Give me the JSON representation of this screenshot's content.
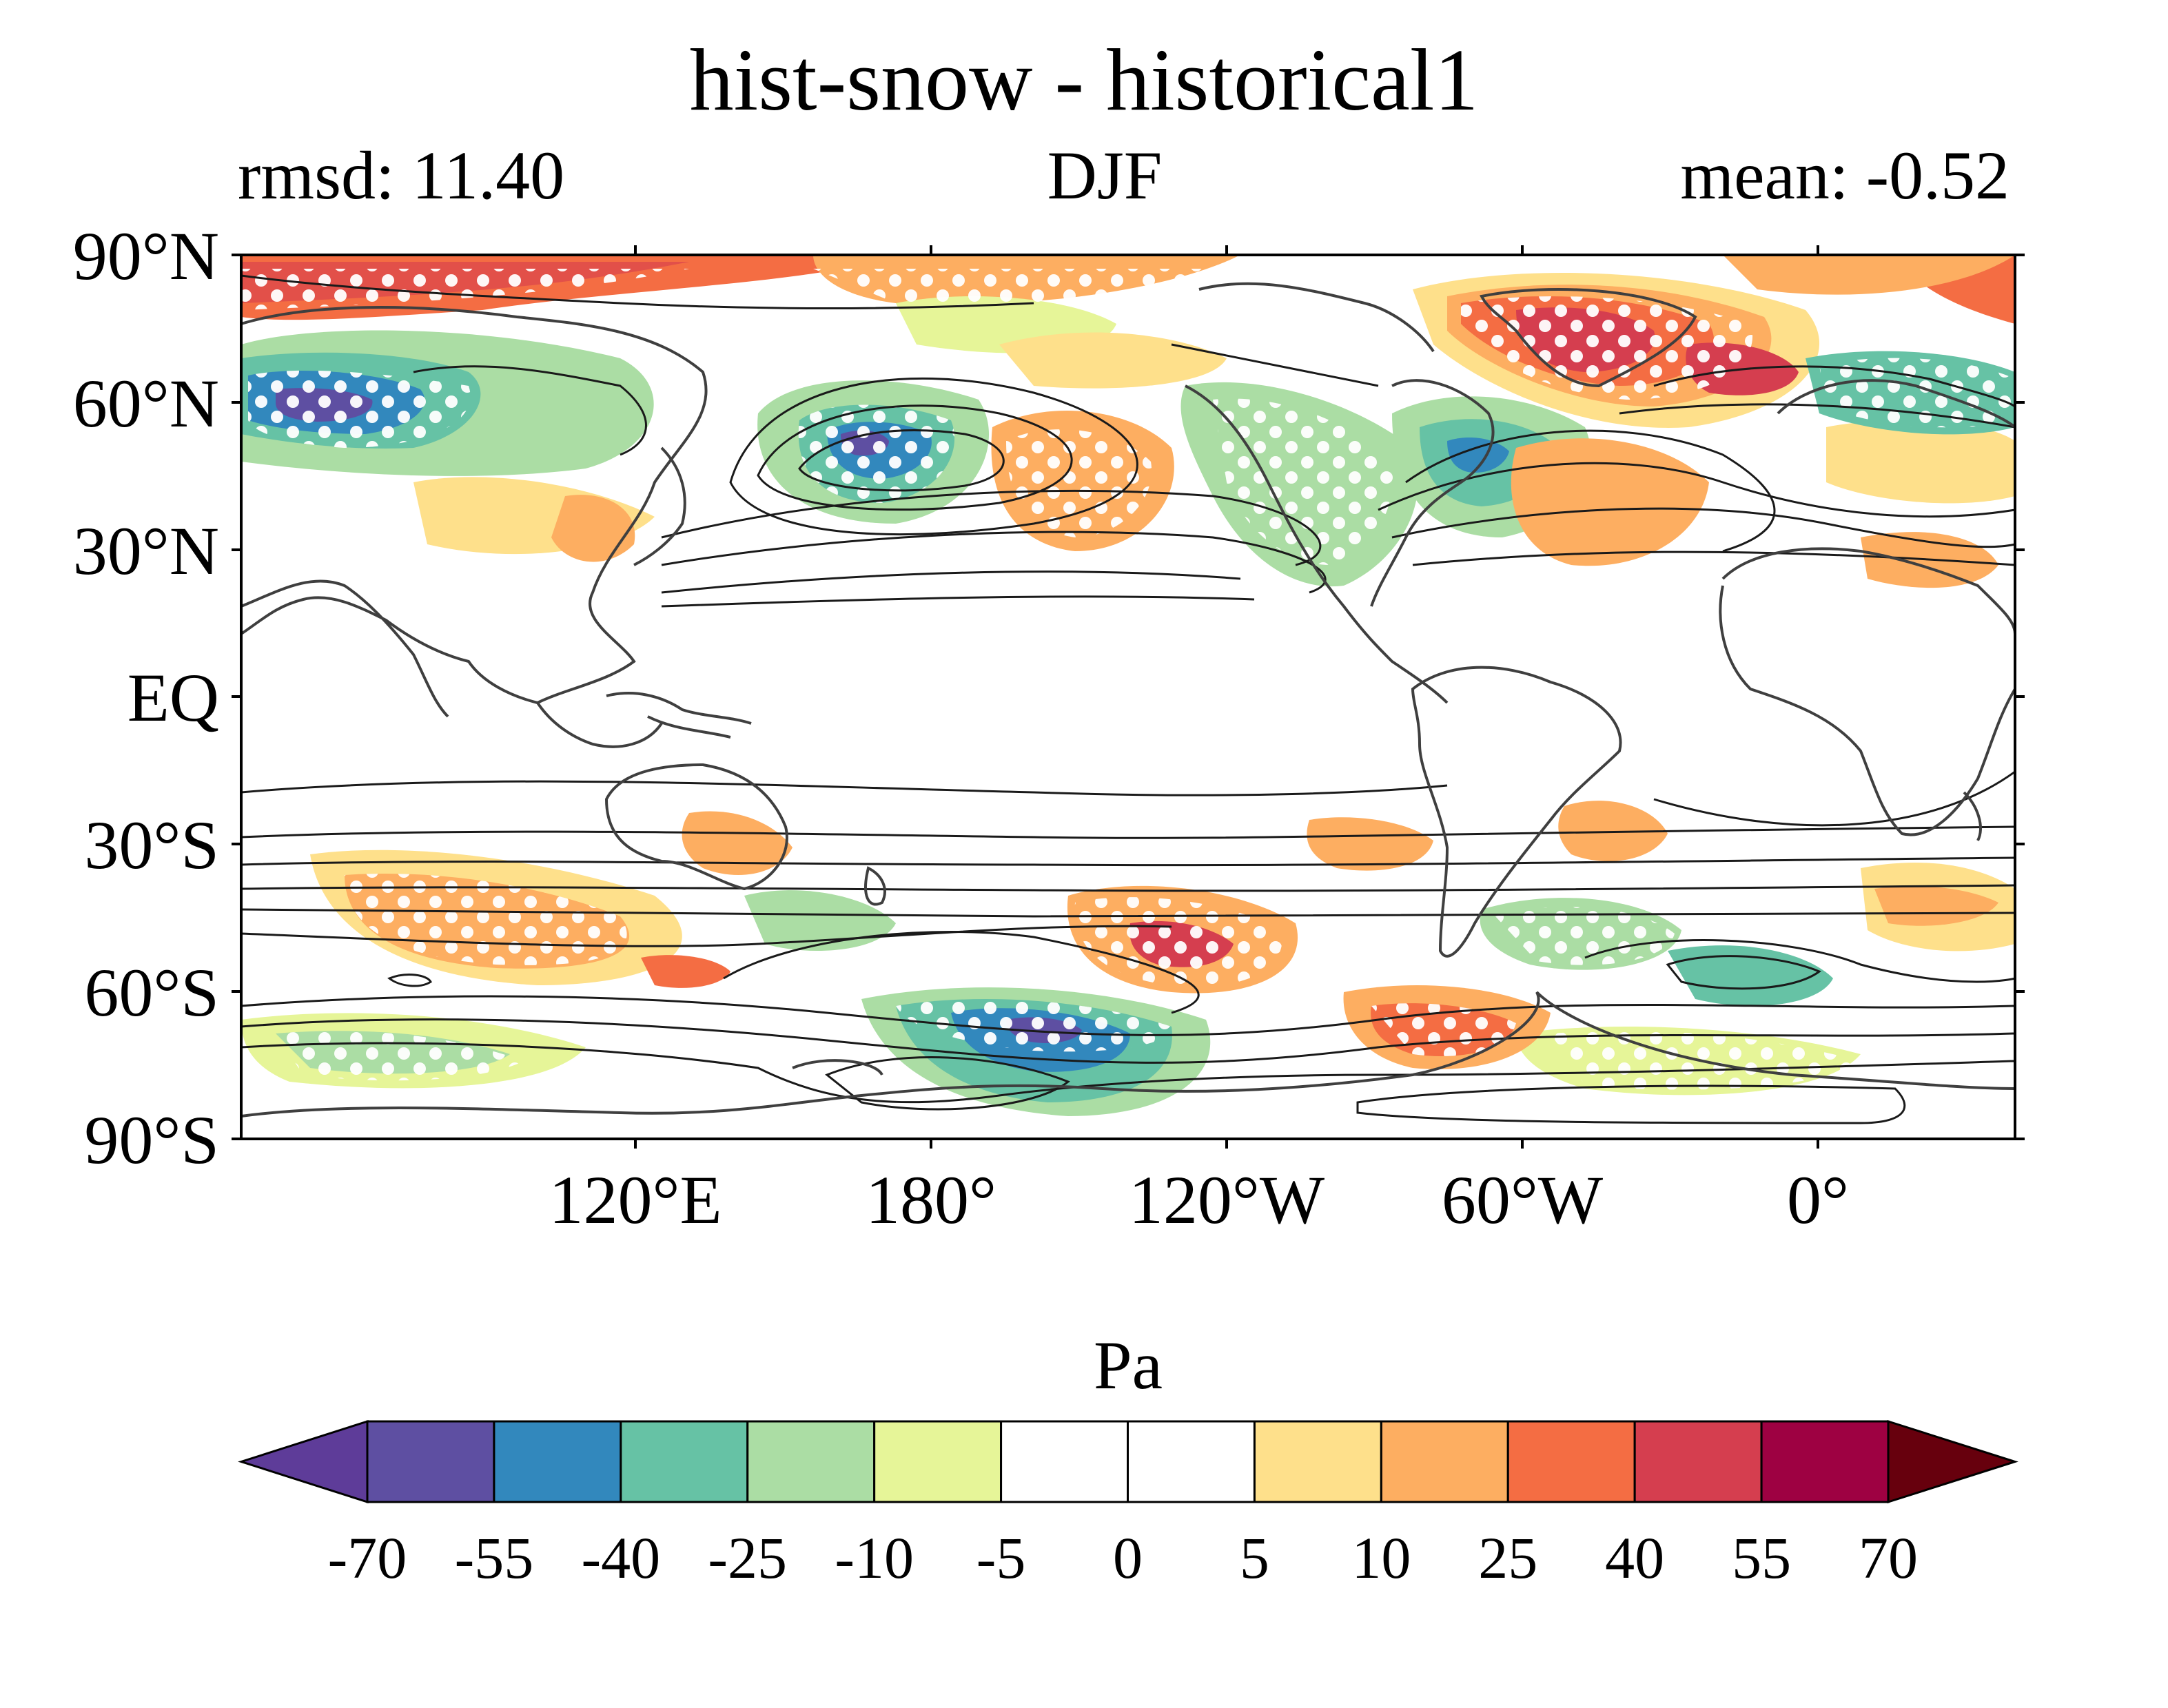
{
  "title": "hist-snow - historical1",
  "subtitle_left": "rmsd: 11.40",
  "subtitle_center": "DJF",
  "subtitle_right": "mean: -0.52",
  "colorbar": {
    "units": "Pa",
    "ticks": [
      "-70",
      "-55",
      "-40",
      "-25",
      "-10",
      "-5",
      "0",
      "5",
      "10",
      "25",
      "40",
      "55",
      "70"
    ],
    "colors": [
      "#5e3c99",
      "#5e4fa2",
      "#3288bd",
      "#66c2a5",
      "#abdda4",
      "#e6f598",
      "#ffffff",
      "#ffffff",
      "#fee08b",
      "#fdae61",
      "#f46d43",
      "#d53e4f",
      "#9e0142",
      "#67000d"
    ]
  },
  "map": {
    "lat_labels": [
      "90°N",
      "60°N",
      "30°N",
      "EQ",
      "30°S",
      "60°S",
      "90°S"
    ],
    "lon_labels": [
      "120°E",
      "180°",
      "120°W",
      "60°W",
      "0°"
    ],
    "projection": "PlateCarree centered 150°W",
    "stippling": "white dots mark significant regions",
    "contours": "black climatological isolines"
  }
}
